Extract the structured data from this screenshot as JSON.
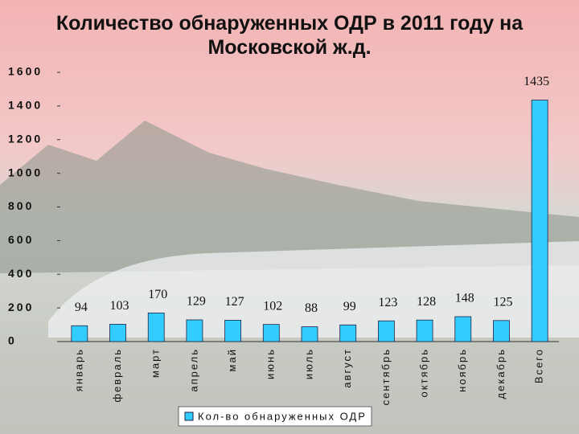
{
  "chart_data": {
    "type": "bar",
    "title": "Количество обнаруженных ОДР в 2011 году на Московской ж.д.",
    "categories": [
      "январь",
      "февраль",
      "март",
      "апрель",
      "май",
      "июнь",
      "июль",
      "август",
      "сентябрь",
      "октябрь",
      "ноябрь",
      "декабрь",
      "Всего"
    ],
    "series": [
      {
        "name": "Кол-во обнаруженных ОДР",
        "color": "#33ccff",
        "values": [
          94,
          103,
          170,
          129,
          127,
          102,
          88,
          99,
          123,
          128,
          148,
          125,
          1435
        ]
      }
    ],
    "ylim": [
      0,
      1600
    ],
    "yticks": [
      0,
      200,
      400,
      600,
      800,
      1000,
      1200,
      1400,
      1600
    ],
    "grid": false,
    "legend": "bottom"
  }
}
